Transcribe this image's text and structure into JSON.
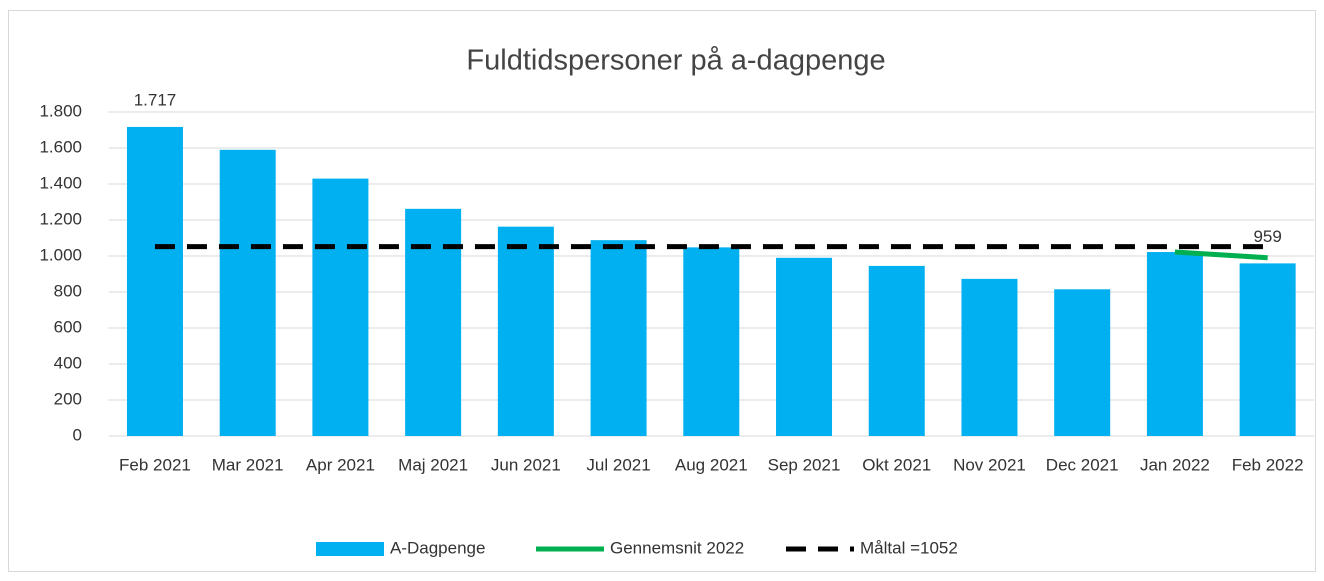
{
  "chart_data": {
    "type": "bar",
    "title": "Fuldtidspersoner på a-dagpenge",
    "categories": [
      "Feb 2021",
      "Mar 2021",
      "Apr 2021",
      "Maj 2021",
      "Jun 2021",
      "Jul 2021",
      "Aug 2021",
      "Sep 2021",
      "Okt 2021",
      "Nov 2021",
      "Dec 2021",
      "Jan 2022",
      "Feb 2022"
    ],
    "series": [
      {
        "name": "A-Dagpenge",
        "type": "bar",
        "color": "#00b0f0",
        "values": [
          1717,
          1590,
          1430,
          1262,
          1163,
          1088,
          1048,
          990,
          945,
          873,
          815,
          1022,
          959
        ],
        "value_labels": [
          "1.717",
          null,
          null,
          null,
          null,
          null,
          null,
          null,
          null,
          null,
          null,
          null,
          "959"
        ]
      },
      {
        "name": "Gennemsnit 2022",
        "type": "line",
        "color": "#00b050",
        "values": [
          null,
          null,
          null,
          null,
          null,
          null,
          null,
          null,
          null,
          null,
          null,
          1022,
          990.5
        ]
      },
      {
        "name": "Måltal =1052",
        "type": "line",
        "color": "#000000",
        "dashed": true,
        "values": [
          1052,
          1052,
          1052,
          1052,
          1052,
          1052,
          1052,
          1052,
          1052,
          1052,
          1052,
          1052,
          1052
        ]
      }
    ],
    "ylim": [
      0,
      1800
    ],
    "yticks": [
      0,
      200,
      400,
      600,
      800,
      {
        "value": 1000,
        "label": "1.000"
      },
      {
        "value": 1200,
        "label": "1.200"
      },
      {
        "value": 1400,
        "label": "1.400"
      },
      {
        "value": 1600,
        "label": "1.600"
      },
      {
        "value": 1800,
        "label": "1.800"
      }
    ],
    "grid": true,
    "legend": "bottom"
  }
}
